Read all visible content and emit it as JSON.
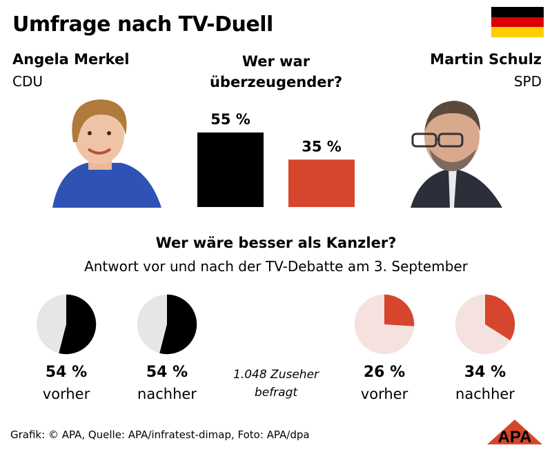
{
  "title": "Umfrage nach TV-Duell",
  "colors": {
    "merkel": "#000000",
    "schulz": "#d5462c",
    "pie_gray_bg": "#e6e6e6",
    "pie_pink_bg": "#f5e2de",
    "flag_black": "#000000",
    "flag_red": "#dd0000",
    "flag_gold": "#ffce00"
  },
  "left_candidate": {
    "name": "Angela Merkel",
    "party": "CDU"
  },
  "right_candidate": {
    "name": "Martin Schulz",
    "party": "SPD"
  },
  "question1": [
    "Wer war",
    "überzeugender?"
  ],
  "chart_data": [
    {
      "type": "bar",
      "title": "Wer war überzeugender?",
      "categories": [
        "Angela Merkel (CDU)",
        "Martin Schulz (SPD)"
      ],
      "values": [
        55,
        35
      ],
      "labels": [
        "55 %",
        "35 %"
      ],
      "ylim": [
        0,
        55
      ]
    },
    {
      "type": "pie",
      "title": "Wer wäre besser als Kanzler?",
      "subtitle": "Antwort vor und nach der TV-Debatte am 3. September",
      "series": [
        {
          "name": "Merkel vorher",
          "value": 54,
          "label": "54 %",
          "caption": "vorher"
        },
        {
          "name": "Merkel nachher",
          "value": 54,
          "label": "54 %",
          "caption": "nachher"
        },
        {
          "name": "Schulz vorher",
          "value": 26,
          "label": "26 %",
          "caption": "vorher"
        },
        {
          "name": "Schulz nachher",
          "value": 34,
          "label": "34 %",
          "caption": "nachher"
        }
      ],
      "note": [
        "1.048 Zuseher",
        "befragt"
      ]
    }
  ],
  "footer": "Grafik: © APA, Quelle: APA/infratest-dimap, Foto: APA/dpa",
  "logo_text": "APA"
}
